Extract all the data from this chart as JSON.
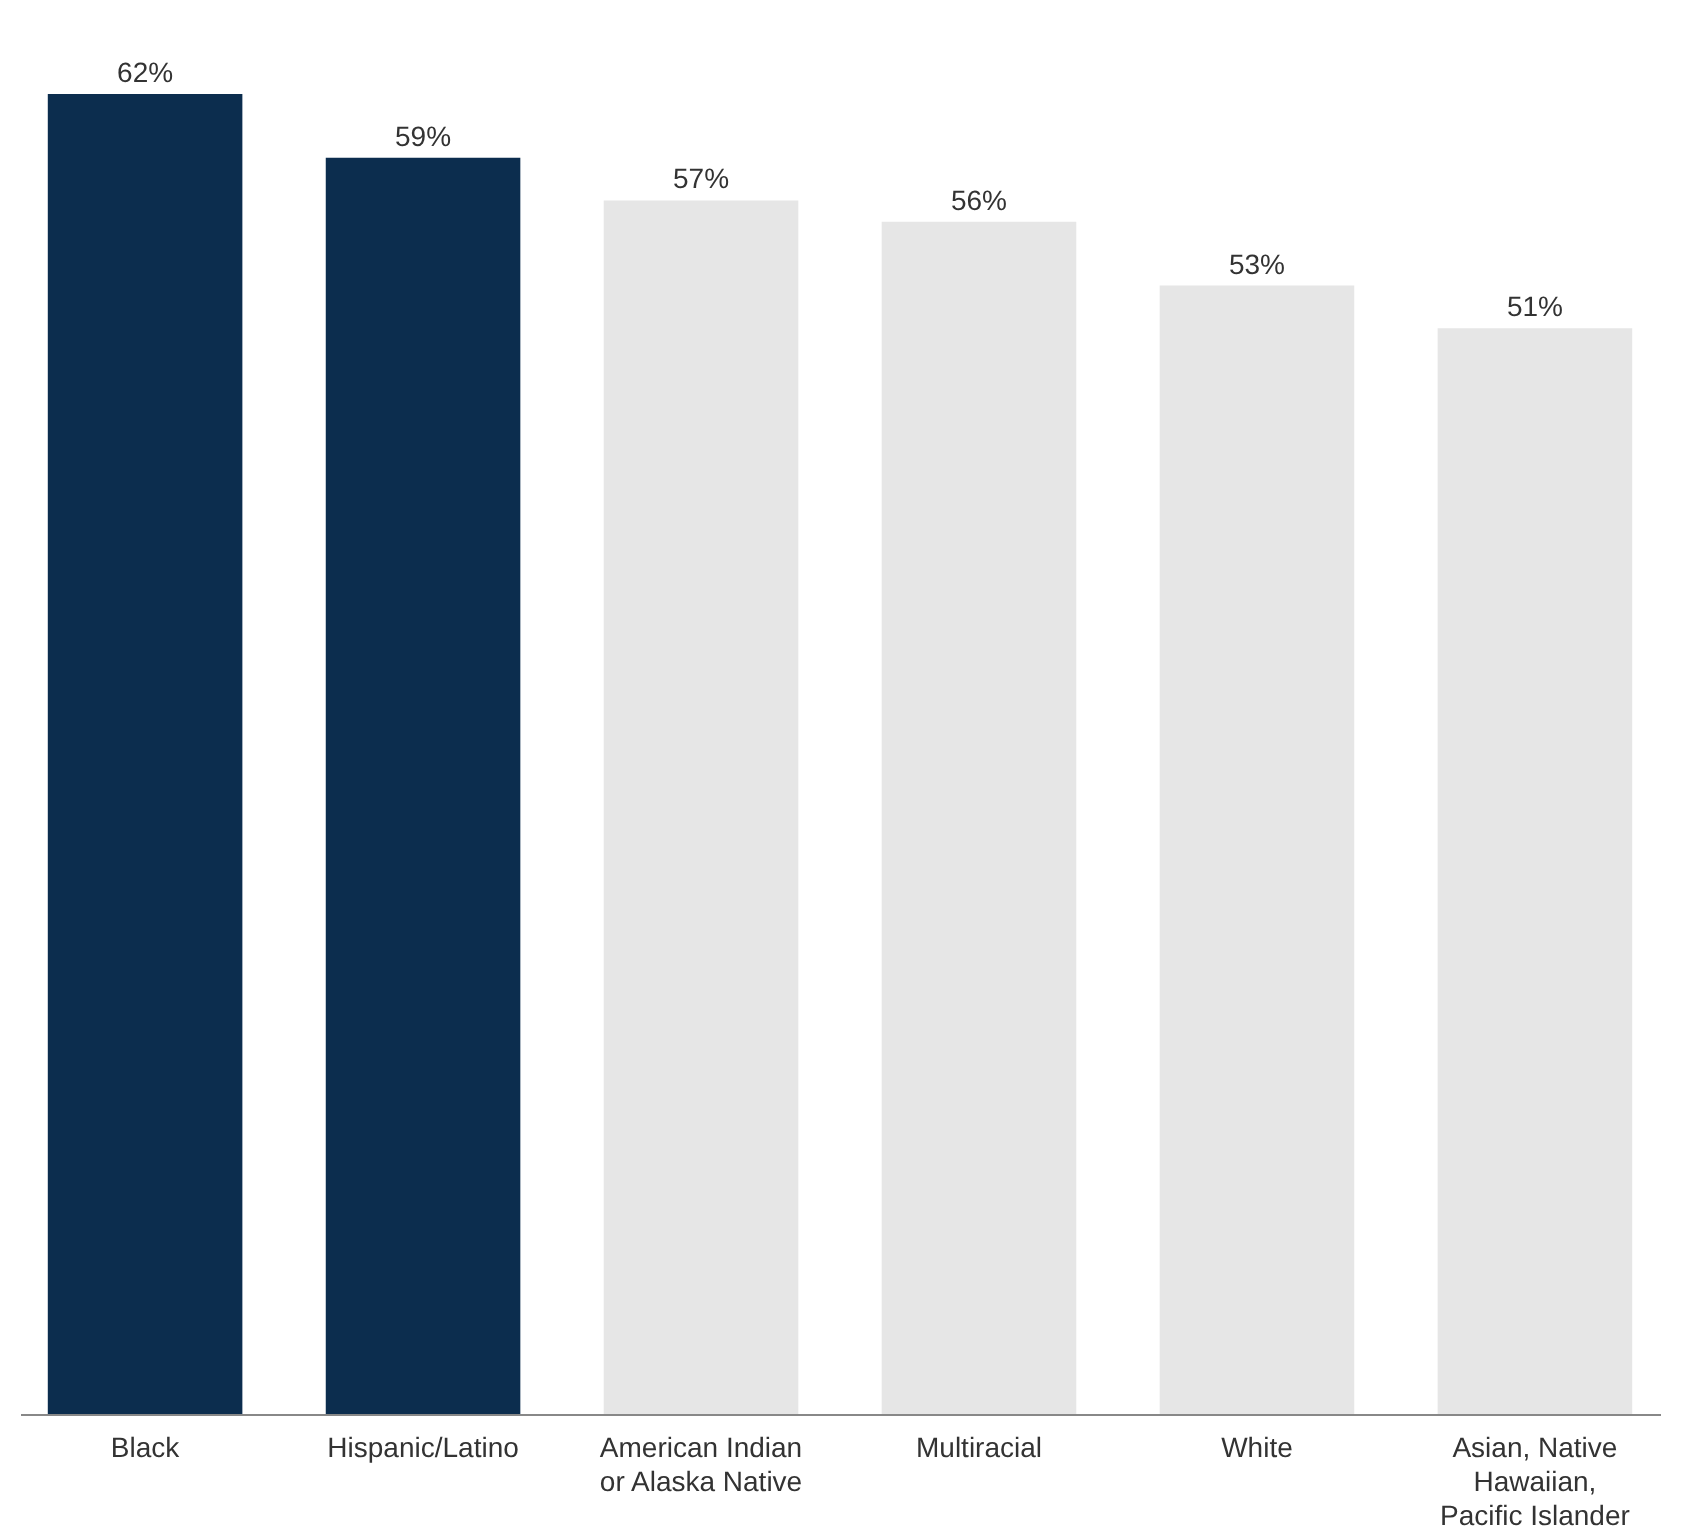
{
  "chart_data": {
    "type": "bar",
    "categories": [
      "Black",
      "Hispanic/Latino",
      "American Indian or Alaska Native",
      "Multiracial",
      "White",
      "Asian, Native Hawaiian, Pacific Islander"
    ],
    "values": [
      62,
      59,
      57,
      56,
      53,
      51
    ],
    "colors": [
      "#0c2d4e",
      "#0c2d4e",
      "#e6e6e6",
      "#e6e6e6",
      "#e6e6e6",
      "#e6e6e6"
    ],
    "value_labels": [
      "62%",
      "59%",
      "57%",
      "56%",
      "53%",
      "51%"
    ]
  }
}
